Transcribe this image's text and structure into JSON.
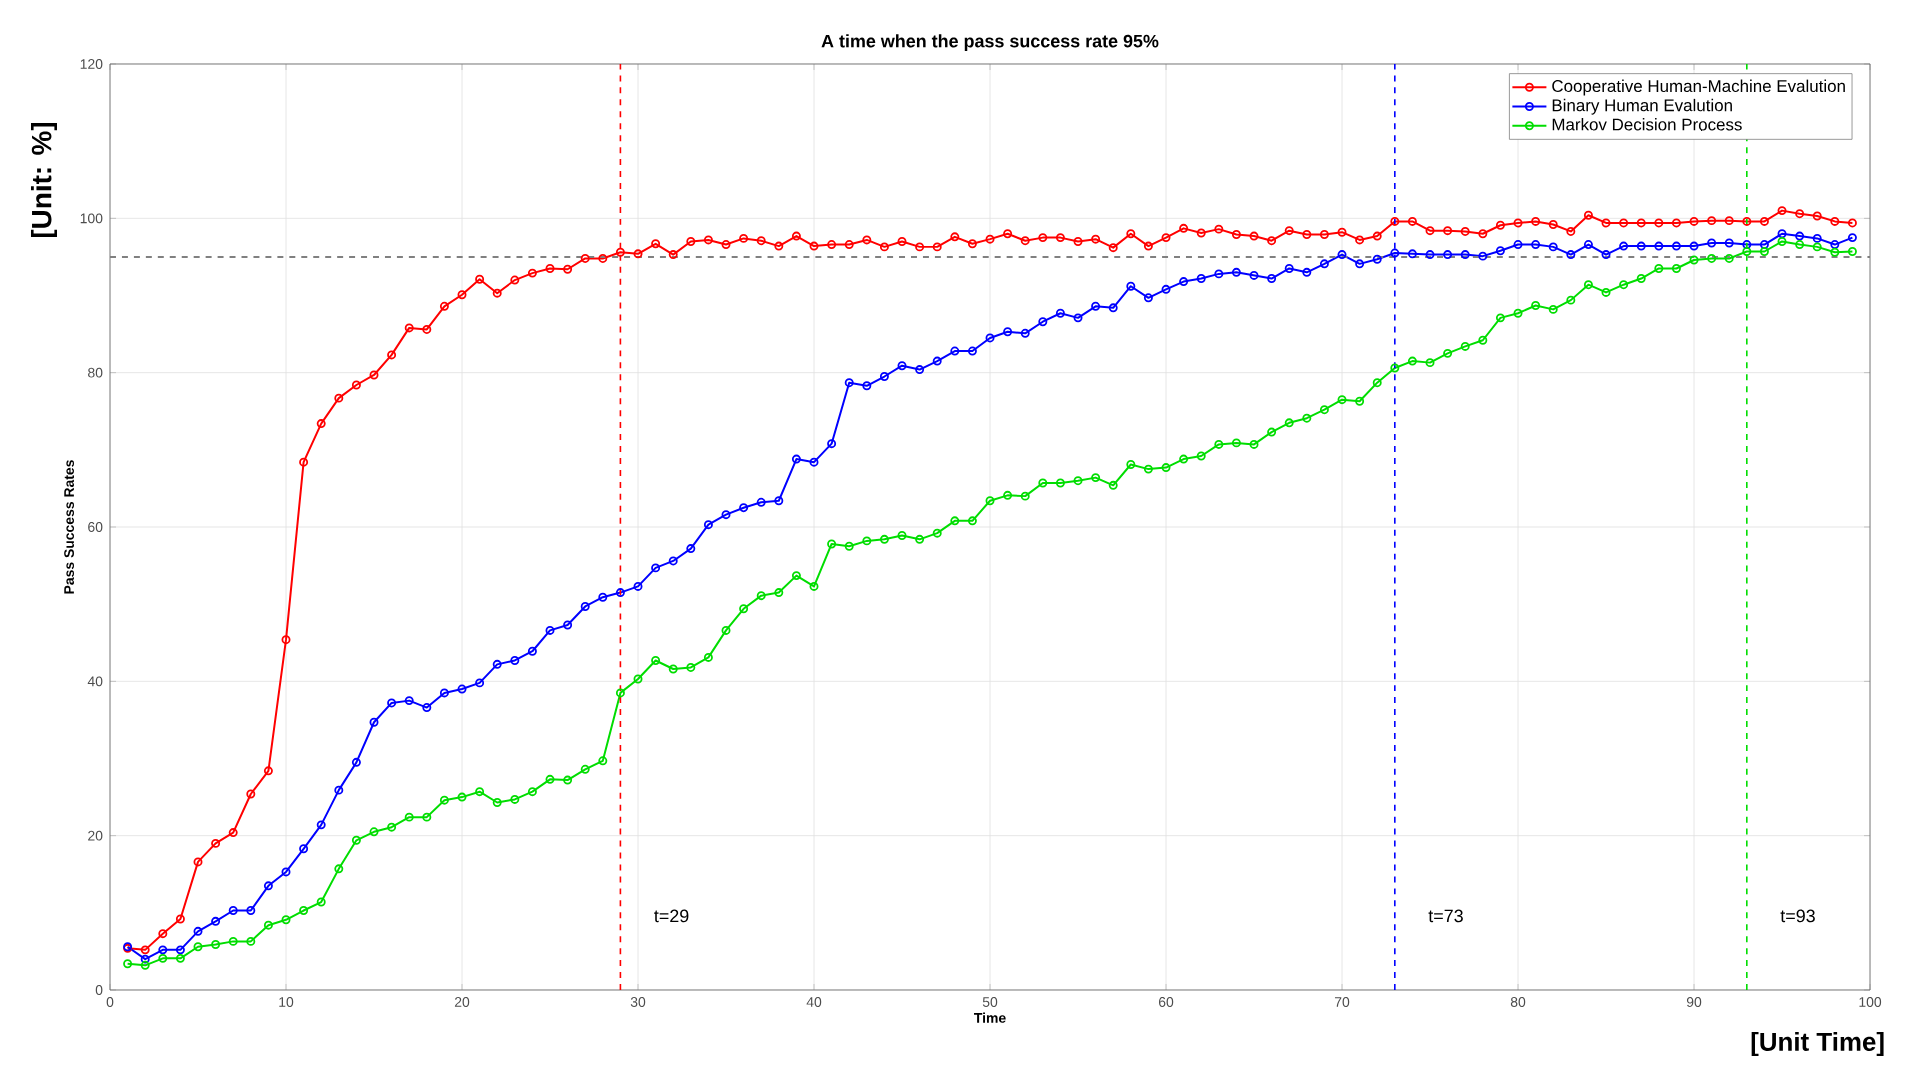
{
  "chart_data": {
    "type": "line",
    "title": "A time when the pass success rate 95%",
    "xlabel": "Time",
    "ylabel": "Pass Success Rates",
    "annotations": [
      "[Unit: %]",
      "[Unit Time]"
    ],
    "x": [
      1,
      2,
      3,
      4,
      5,
      6,
      7,
      8,
      9,
      10,
      11,
      12,
      13,
      14,
      15,
      16,
      17,
      18,
      19,
      20,
      21,
      22,
      23,
      24,
      25,
      26,
      27,
      28,
      29,
      30,
      31,
      32,
      33,
      34,
      35,
      36,
      37,
      38,
      39,
      40,
      41,
      42,
      43,
      44,
      45,
      46,
      47,
      48,
      49,
      50,
      51,
      52,
      53,
      54,
      55,
      56,
      57,
      58,
      59,
      60,
      61,
      62,
      63,
      64,
      65,
      66,
      67,
      68,
      69,
      70,
      71,
      72,
      73,
      74,
      75,
      76,
      77,
      78,
      79,
      80,
      81,
      82,
      83,
      84,
      85,
      86,
      87,
      88,
      89,
      90,
      91,
      92,
      93,
      94,
      95,
      96,
      97,
      98,
      99
    ],
    "series": [
      {
        "name": "Cooperative Human-Machine Evalution",
        "color": "#ff0000",
        "values": [
          5.4,
          5.2,
          7.3,
          9.2,
          16.6,
          19,
          20.4,
          25.4,
          28.4,
          45.4,
          68.4,
          73.4,
          76.7,
          78.4,
          79.7,
          82.3,
          85.8,
          85.6,
          88.6,
          90.1,
          92.1,
          90.3,
          92,
          92.9,
          93.5,
          93.4,
          94.8,
          94.8,
          95.6,
          95.4,
          96.7,
          95.3,
          97,
          97.2,
          96.6,
          97.4,
          97.1,
          96.4,
          97.7,
          96.4,
          96.6,
          96.6,
          97.2,
          96.3,
          97,
          96.3,
          96.3,
          97.6,
          96.7,
          97.3,
          98,
          97.1,
          97.5,
          97.5,
          97,
          97.3,
          96.2,
          98,
          96.4,
          97.5,
          98.7,
          98.1,
          98.6,
          97.9,
          97.7,
          97.1,
          98.4,
          97.9,
          97.9,
          98.2,
          97.2,
          97.7,
          99.6,
          99.6,
          98.4,
          98.4,
          98.3,
          98,
          99.1,
          99.4,
          99.6,
          99.2,
          98.3,
          100.4,
          99.4,
          99.4,
          99.4,
          99.4,
          99.4,
          99.6,
          99.7,
          99.7,
          99.6,
          99.6,
          101,
          100.6,
          100.3,
          99.6,
          99.4
        ]
      },
      {
        "name": "Binary Human Evalution",
        "color": "#0000ff",
        "values": [
          5.6,
          4,
          5.2,
          5.2,
          7.6,
          8.9,
          10.3,
          10.3,
          13.5,
          15.3,
          18.3,
          21.4,
          25.9,
          29.5,
          34.7,
          37.2,
          37.5,
          36.6,
          38.5,
          39,
          39.8,
          42.2,
          42.7,
          43.9,
          46.6,
          47.3,
          49.7,
          50.9,
          51.5,
          52.3,
          54.7,
          55.6,
          57.2,
          60.3,
          61.6,
          62.5,
          63.2,
          63.4,
          68.8,
          68.4,
          70.8,
          78.7,
          78.3,
          79.5,
          80.9,
          80.4,
          81.5,
          82.8,
          82.8,
          84.5,
          85.3,
          85.1,
          86.6,
          87.7,
          87.1,
          88.6,
          88.4,
          91.2,
          89.7,
          90.8,
          91.8,
          92.2,
          92.8,
          93,
          92.6,
          92.2,
          93.5,
          93,
          94.1,
          95.3,
          94.1,
          94.7,
          95.5,
          95.4,
          95.3,
          95.3,
          95.3,
          95.1,
          95.8,
          96.6,
          96.6,
          96.3,
          95.3,
          96.6,
          95.3,
          96.4,
          96.4,
          96.4,
          96.4,
          96.4,
          96.8,
          96.8,
          96.6,
          96.6,
          98,
          97.7,
          97.4,
          96.6,
          97.5
        ]
      },
      {
        "name": "Markov Decision Process",
        "color": "#00dd00",
        "values": [
          3.4,
          3.2,
          4.1,
          4.1,
          5.6,
          5.9,
          6.3,
          6.3,
          8.4,
          9.1,
          10.3,
          11.4,
          15.7,
          19.4,
          20.5,
          21.1,
          22.4,
          22.4,
          24.6,
          25,
          25.7,
          24.3,
          24.7,
          25.7,
          27.3,
          27.2,
          28.6,
          29.7,
          38.5,
          40.3,
          42.7,
          41.6,
          41.8,
          43.1,
          46.6,
          49.4,
          51.1,
          51.5,
          53.7,
          52.3,
          57.8,
          57.5,
          58.2,
          58.4,
          58.9,
          58.4,
          59.2,
          60.8,
          60.8,
          63.4,
          64.1,
          64,
          65.7,
          65.7,
          66,
          66.4,
          65.4,
          68.1,
          67.5,
          67.7,
          68.8,
          69.2,
          70.7,
          70.9,
          70.7,
          72.3,
          73.5,
          74.1,
          75.2,
          76.5,
          76.3,
          78.7,
          80.6,
          81.5,
          81.3,
          82.5,
          83.4,
          84.2,
          87.1,
          87.7,
          88.7,
          88.2,
          89.4,
          91.4,
          90.4,
          91.4,
          92.2,
          93.5,
          93.5,
          94.6,
          94.8,
          94.8,
          95.7,
          95.7,
          97,
          96.6,
          96.3,
          95.6,
          95.7
        ]
      }
    ],
    "xlim": [
      0,
      100
    ],
    "xticks": [
      0,
      10,
      20,
      30,
      40,
      50,
      60,
      70,
      80,
      90,
      100
    ],
    "ylim": [
      0,
      120
    ],
    "yticks": [
      0,
      20,
      40,
      60,
      80,
      100,
      120
    ],
    "ref_lines": [
      {
        "axis": "y",
        "value": 95,
        "color": "#808080",
        "line_style": "dashed"
      },
      {
        "axis": "x",
        "value": 29,
        "label": "t=29",
        "color": "#ff0000",
        "line_style": "dashed"
      },
      {
        "axis": "x",
        "value": 73,
        "label": "t=73",
        "color": "#0000ff",
        "line_style": "dashed"
      },
      {
        "axis": "x",
        "value": 93,
        "label": "t=93",
        "color": "#00dd00",
        "line_style": "dashed"
      }
    ],
    "grid": true,
    "legend": "top right",
    "marker": "circle",
    "line_style": "solid"
  }
}
